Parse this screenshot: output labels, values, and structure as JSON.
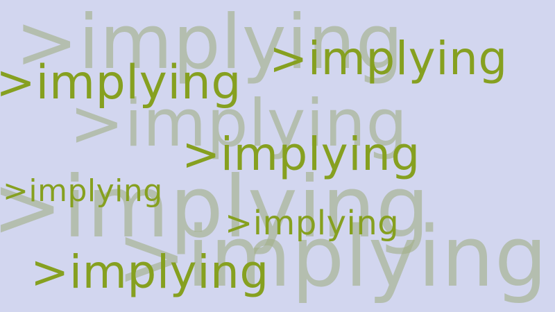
{
  "text": ">implying",
  "colors": {
    "background": "#d2d6ef",
    "foreground_text": "#86a020",
    "background_text": "#a3b089"
  },
  "words": {
    "bg_1": ">implying",
    "bg_2": ">implying",
    "bg_3": ">implying",
    "bg_4": ">implying",
    "fg_1": ">implying",
    "fg_2": ">implying",
    "fg_3": ">implying",
    "fg_4": ">implying",
    "fg_5": ">implying",
    "fg_6": ">implying"
  }
}
